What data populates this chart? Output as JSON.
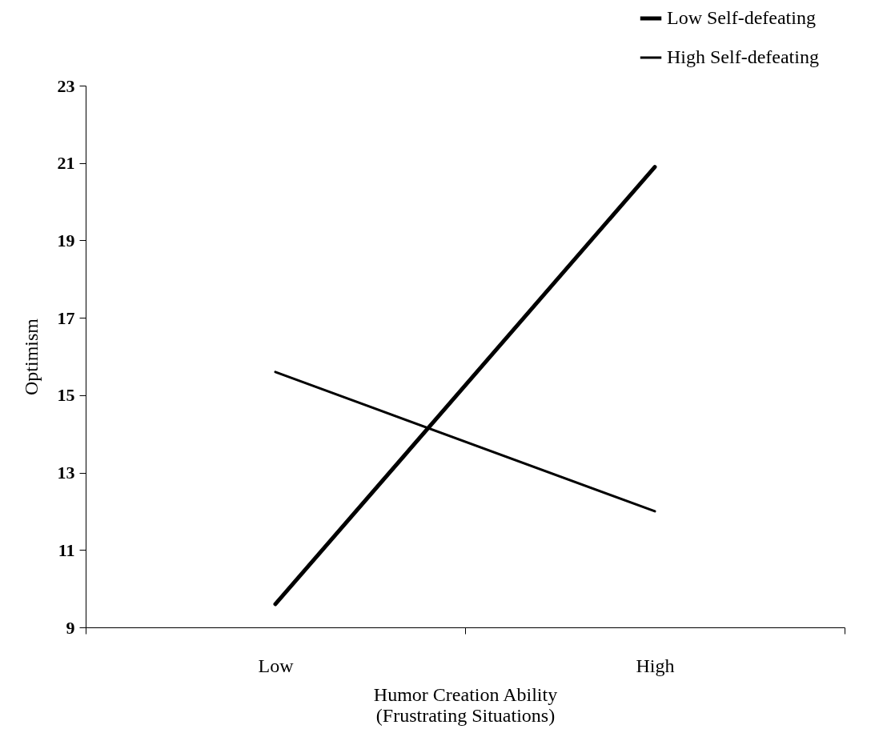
{
  "chart_data": {
    "type": "line",
    "xlabel": "Humor Creation Ability\n(Frustrating Situations)",
    "ylabel": "Optimism",
    "categories": [
      "Low",
      "High"
    ],
    "series": [
      {
        "name": "Low Self-defeating",
        "color": "#000000",
        "values": [
          9.6,
          20.9
        ]
      },
      {
        "name": "High Self-defeating",
        "color": "#000000",
        "values": [
          15.6,
          12.0
        ]
      }
    ],
    "ylim": [
      9,
      23
    ],
    "yticks": [
      9,
      11,
      13,
      15,
      17,
      19,
      21,
      23
    ],
    "grid": false,
    "legend": "top right",
    "marker": "none",
    "line_style": "solid"
  }
}
